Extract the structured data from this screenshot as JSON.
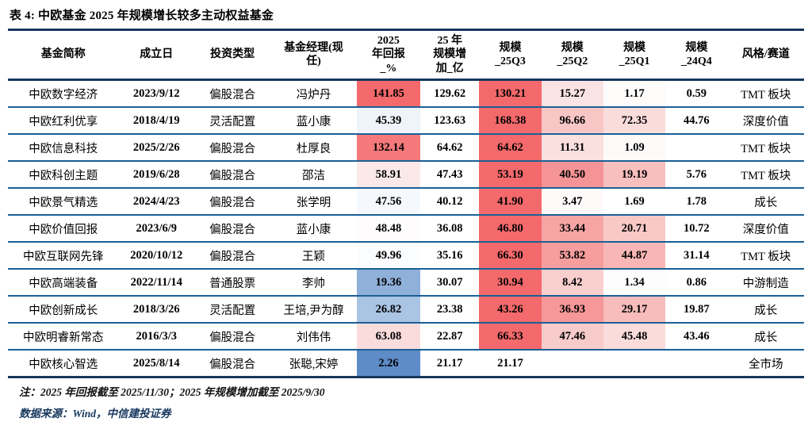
{
  "title": "表 4: 中欧基金 2025 年规模增长较多主动权益基金",
  "palette": {
    "scale_red_max": "#F4696B",
    "scale_blue_min": "#5E8CC8",
    "thick_rule": "#17375E",
    "thin_rule": "#1A6096"
  },
  "table": {
    "headers": [
      "基金简称",
      "成立日",
      "投资类型",
      "基金经理(现\n任)",
      "2025\n年回报\n_%",
      "25 年\n规模增\n加_亿",
      "规模\n_25Q3",
      "规模\n_25Q2",
      "规模\n_25Q1",
      "规模\n_24Q4",
      "风格/赛道"
    ],
    "rows": [
      {
        "cells": [
          "中欧数字经济",
          "2023/9/12",
          "偏股混合",
          "冯炉丹",
          "141.85",
          "129.62",
          "130.21",
          "15.27",
          "1.17",
          "0.59",
          "TMT 板块"
        ],
        "fills": [
          "",
          "",
          "",
          "",
          "#F4696B",
          "",
          "#F4696B",
          "#FAE3E3",
          "#FEFBFB",
          "",
          ""
        ]
      },
      {
        "cells": [
          "中欧红利优享",
          "2018/4/19",
          "灵活配置",
          "蓝小康",
          "45.39",
          "123.63",
          "168.38",
          "96.66",
          "72.35",
          "44.76",
          "深度价值"
        ],
        "fills": [
          "",
          "",
          "",
          "",
          "#EFF3FA",
          "",
          "#F4696B",
          "#F8C6C5",
          "#FADCDB",
          "",
          ""
        ]
      },
      {
        "cells": [
          "中欧信息科技",
          "2025/2/26",
          "偏股混合",
          "杜厚良",
          "132.14",
          "64.62",
          "64.62",
          "11.31",
          "1.09",
          "",
          "TMT 板块"
        ],
        "fills": [
          "",
          "",
          "",
          "",
          "#F5797B",
          "",
          "#F4696B",
          "#FBE0E0",
          "#FEFAFA",
          "",
          ""
        ]
      },
      {
        "cells": [
          "中欧科创主题",
          "2019/6/28",
          "偏股混合",
          "邵洁",
          "58.91",
          "47.43",
          "53.19",
          "40.50",
          "19.19",
          "5.76",
          "TMT 板块"
        ],
        "fills": [
          "",
          "",
          "",
          "",
          "#FBE9E9",
          "",
          "#F4696B",
          "#F59496",
          "#F8BFBF",
          "",
          ""
        ]
      },
      {
        "cells": [
          "中欧景气精选",
          "2024/4/23",
          "偏股混合",
          "张学明",
          "47.56",
          "40.12",
          "41.90",
          "3.47",
          "1.69",
          "1.78",
          "成长"
        ],
        "fills": [
          "",
          "",
          "",
          "",
          "#F5F8FC",
          "",
          "#F4696B",
          "#FEFAFA",
          "",
          "",
          ""
        ]
      },
      {
        "cells": [
          "中欧价值回报",
          "2023/6/9",
          "偏股混合",
          "蓝小康",
          "48.48",
          "36.08",
          "46.80",
          "33.44",
          "20.71",
          "10.72",
          "深度价值"
        ],
        "fills": [
          "",
          "",
          "",
          "",
          "#FEFCFC",
          "",
          "#F4696B",
          "#F6A5A4",
          "#F9C9C8",
          "",
          ""
        ]
      },
      {
        "cells": [
          "中欧互联网先锋",
          "2020/10/12",
          "偏股混合",
          "王颖",
          "49.96",
          "35.16",
          "66.30",
          "53.82",
          "44.87",
          "31.14",
          "TMT 板块"
        ],
        "fills": [
          "",
          "",
          "",
          "",
          "#FBFCFE",
          "",
          "#F4696B",
          "#F69D9D",
          "#F8B7B6",
          "",
          ""
        ]
      },
      {
        "cells": [
          "中欧高端装备",
          "2022/11/14",
          "普通股票",
          "李帅",
          "19.36",
          "30.07",
          "30.94",
          "8.42",
          "1.34",
          "0.86",
          "中游制造"
        ],
        "fills": [
          "",
          "",
          "",
          "",
          "#8FB0D9",
          "",
          "#F4696B",
          "#F9CFCE",
          "#FEFDFD",
          "",
          ""
        ]
      },
      {
        "cells": [
          "中欧创新成长",
          "2018/3/26",
          "灵活配置",
          "王培,尹为醇",
          "26.82",
          "23.38",
          "43.26",
          "36.93",
          "29.17",
          "19.87",
          "成长"
        ],
        "fills": [
          "",
          "",
          "",
          "",
          "#AAC4E3",
          "",
          "#F4696B",
          "#F69799",
          "#F8BCBC",
          "",
          ""
        ]
      },
      {
        "cells": [
          "中欧明睿新常态",
          "2016/3/3",
          "偏股混合",
          "刘伟伟",
          "63.08",
          "22.87",
          "66.33",
          "47.46",
          "45.48",
          "43.46",
          "成长"
        ],
        "fills": [
          "",
          "",
          "",
          "",
          "#FADCDD",
          "",
          "#F4696B",
          "#F8CBCB",
          "#FADCDB",
          "",
          ""
        ]
      },
      {
        "cells": [
          "中欧核心智选",
          "2025/8/14",
          "偏股混合",
          "张聪,宋婷",
          "2.26",
          "21.17",
          "21.17",
          "",
          "",
          "",
          "全市场"
        ],
        "fills": [
          "",
          "",
          "",
          "",
          "#5E8CC8",
          "",
          "",
          "",
          "",
          "",
          ""
        ]
      }
    ]
  },
  "notes": {
    "note": "注：2025 年回报截至 2025/11/30；2025 年规模增加截至 2025/9/30",
    "source": "数据来源：Wind，中信建投证券"
  }
}
